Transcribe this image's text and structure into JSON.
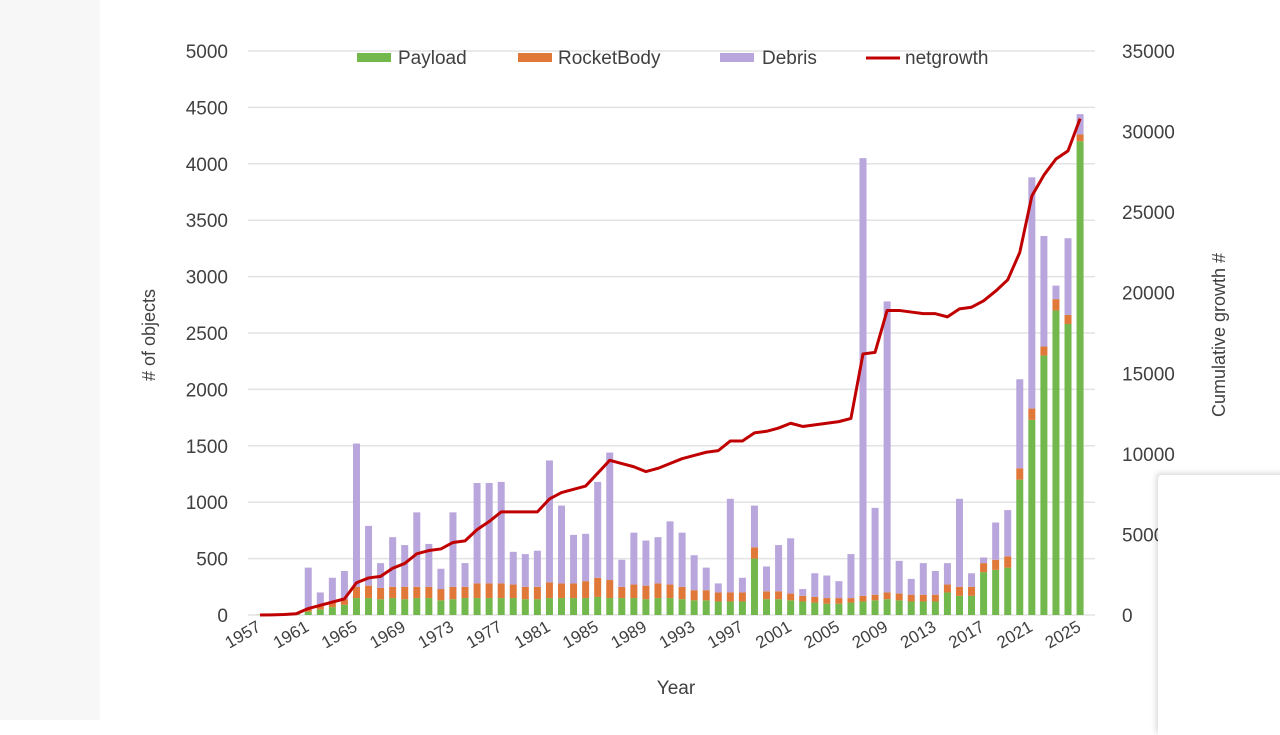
{
  "chart_data": {
    "type": "bar",
    "stacked": true,
    "xlabel": "Year",
    "ylabel": "# of objects",
    "y2label": "Cumulative growth #",
    "ylim": [
      0,
      5000
    ],
    "y2lim": [
      0,
      35000
    ],
    "yticks": [
      "0",
      "500",
      "1000",
      "1500",
      "2000",
      "2500",
      "3000",
      "3500",
      "4000",
      "4500",
      "5000"
    ],
    "y2ticks": [
      "0",
      "5000",
      "10000",
      "15000",
      "20000",
      "25000",
      "30000",
      "35000"
    ],
    "xtick_labels": [
      "1957",
      "1961",
      "1965",
      "1969",
      "1973",
      "1977",
      "1981",
      "1985",
      "1989",
      "1993",
      "1997",
      "2001",
      "2005",
      "2009",
      "2013",
      "2017",
      "2021",
      "2025"
    ],
    "grid": "horizontal",
    "legend_position": "top",
    "colors": {
      "Payload": "#72b84c",
      "RocketBody": "#e0783a",
      "Debris": "#b9a6dc",
      "netgrowth": "#c00000"
    },
    "years": [
      1957,
      1958,
      1959,
      1960,
      1961,
      1962,
      1963,
      1964,
      1965,
      1966,
      1967,
      1968,
      1969,
      1970,
      1971,
      1972,
      1973,
      1974,
      1975,
      1976,
      1977,
      1978,
      1979,
      1980,
      1981,
      1982,
      1983,
      1984,
      1985,
      1986,
      1987,
      1988,
      1989,
      1990,
      1991,
      1992,
      1993,
      1994,
      1995,
      1996,
      1997,
      1998,
      1999,
      2000,
      2001,
      2002,
      2003,
      2004,
      2005,
      2006,
      2007,
      2008,
      2009,
      2010,
      2011,
      2012,
      2013,
      2014,
      2015,
      2016,
      2017,
      2018,
      2019,
      2020,
      2021,
      2022,
      2023,
      2024,
      2025
    ],
    "series": [
      {
        "name": "Payload",
        "type": "bar",
        "values": [
          2,
          5,
          10,
          15,
          30,
          50,
          70,
          90,
          150,
          150,
          140,
          150,
          140,
          150,
          150,
          130,
          140,
          150,
          150,
          150,
          150,
          150,
          140,
          140,
          150,
          150,
          150,
          150,
          160,
          150,
          150,
          150,
          140,
          150,
          150,
          140,
          130,
          130,
          120,
          120,
          120,
          500,
          140,
          140,
          130,
          120,
          110,
          100,
          100,
          110,
          120,
          130,
          140,
          130,
          120,
          120,
          120,
          200,
          170,
          170,
          380,
          400,
          420,
          1200,
          1730,
          2300,
          2700,
          2580,
          4200
        ]
      },
      {
        "name": "RocketBody",
        "type": "bar",
        "values": [
          1,
          3,
          5,
          5,
          20,
          30,
          40,
          50,
          100,
          110,
          100,
          100,
          110,
          100,
          100,
          100,
          110,
          100,
          130,
          130,
          130,
          120,
          110,
          110,
          140,
          130,
          130,
          150,
          170,
          160,
          100,
          120,
          120,
          130,
          120,
          110,
          90,
          90,
          80,
          80,
          80,
          100,
          70,
          70,
          60,
          50,
          50,
          50,
          50,
          40,
          50,
          50,
          60,
          60,
          60,
          60,
          60,
          70,
          80,
          80,
          80,
          90,
          100,
          100,
          100,
          80,
          100,
          80,
          60
        ]
      },
      {
        "name": "Debris",
        "type": "bar",
        "values": [
          0,
          0,
          0,
          0,
          370,
          120,
          220,
          250,
          1270,
          530,
          220,
          440,
          370,
          660,
          380,
          180,
          660,
          210,
          890,
          890,
          900,
          290,
          290,
          320,
          1080,
          690,
          430,
          420,
          850,
          1130,
          240,
          460,
          400,
          410,
          560,
          480,
          310,
          200,
          80,
          830,
          130,
          370,
          220,
          410,
          490,
          60,
          210,
          200,
          150,
          390,
          3880,
          770,
          2580,
          290,
          140,
          280,
          210,
          190,
          780,
          120,
          50,
          330,
          410,
          790,
          2050,
          980,
          120,
          680,
          180
        ]
      },
      {
        "name": "netgrowth",
        "type": "line",
        "axis": "right",
        "values": [
          0,
          10,
          30,
          80,
          400,
          600,
          800,
          1000,
          2000,
          2300,
          2400,
          2900,
          3200,
          3800,
          4000,
          4100,
          4500,
          4600,
          5300,
          5800,
          6400,
          6400,
          6400,
          6400,
          7200,
          7600,
          7800,
          8000,
          8800,
          9600,
          9400,
          9200,
          8900,
          9100,
          9400,
          9700,
          9900,
          10100,
          10200,
          10800,
          10800,
          11300,
          11400,
          11600,
          11900,
          11700,
          11800,
          11900,
          12000,
          12200,
          16200,
          16300,
          18900,
          18900,
          18800,
          18700,
          18700,
          18500,
          19000,
          19100,
          19500,
          20100,
          20800,
          22500,
          26000,
          27300,
          28300,
          28800,
          30800
        ]
      }
    ]
  }
}
